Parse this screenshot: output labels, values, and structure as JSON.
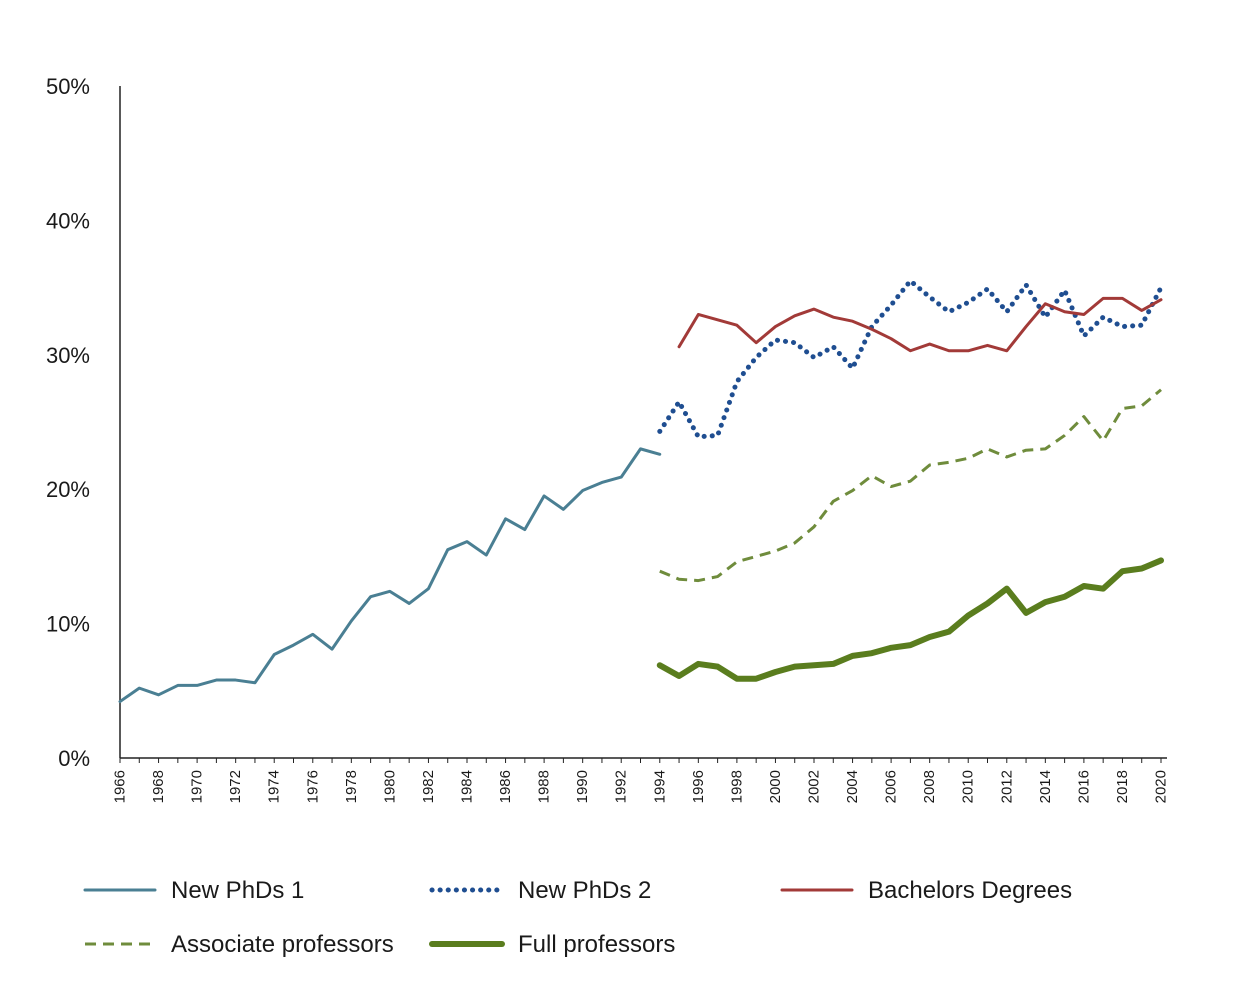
{
  "chart_data": {
    "type": "line",
    "title": "",
    "xlabel": "",
    "ylabel": "",
    "ylim": [
      0,
      50
    ],
    "xlim": [
      1966,
      2020
    ],
    "y_ticks": [
      0,
      10,
      20,
      30,
      40,
      50
    ],
    "y_tick_labels": [
      "0%",
      "10%",
      "20%",
      "30%",
      "40%",
      "50%"
    ],
    "x_tick_labels": [
      "1966",
      "1968",
      "1970",
      "1972",
      "1974",
      "1976",
      "1978",
      "1980",
      "1982",
      "1984",
      "1986",
      "1988",
      "1990",
      "1992",
      "1994",
      "1996",
      "1998",
      "2000",
      "2002",
      "2004",
      "2006",
      "2008",
      "2010",
      "2012",
      "2014",
      "2016",
      "2018",
      "2020"
    ],
    "grid": false,
    "legend_position": "bottom",
    "series": [
      {
        "name": "New PhDs 1",
        "color": "#4a7f93",
        "style": "solid",
        "points": [
          [
            1966,
            4.2
          ],
          [
            1967,
            5.2
          ],
          [
            1968,
            4.7
          ],
          [
            1969,
            5.4
          ],
          [
            1970,
            5.4
          ],
          [
            1971,
            5.8
          ],
          [
            1972,
            5.8
          ],
          [
            1973,
            5.6
          ],
          [
            1974,
            7.7
          ],
          [
            1975,
            8.4
          ],
          [
            1976,
            9.2
          ],
          [
            1977,
            8.1
          ],
          [
            1978,
            10.2
          ],
          [
            1979,
            12.0
          ],
          [
            1980,
            12.4
          ],
          [
            1981,
            11.5
          ],
          [
            1982,
            12.6
          ],
          [
            1983,
            15.5
          ],
          [
            1984,
            16.1
          ],
          [
            1985,
            15.1
          ],
          [
            1986,
            17.8
          ],
          [
            1987,
            17.0
          ],
          [
            1988,
            19.5
          ],
          [
            1989,
            18.5
          ],
          [
            1990,
            19.9
          ],
          [
            1991,
            20.5
          ],
          [
            1992,
            20.9
          ],
          [
            1993,
            23.0
          ],
          [
            1994,
            22.6
          ]
        ]
      },
      {
        "name": "New PhDs 2",
        "color": "#1f4e91",
        "style": "dotted",
        "points": [
          [
            1994,
            24.3
          ],
          [
            1995,
            26.5
          ],
          [
            1996,
            23.9
          ],
          [
            1997,
            24.0
          ],
          [
            1998,
            28.0
          ],
          [
            1999,
            29.8
          ],
          [
            2000,
            31.1
          ],
          [
            2001,
            30.9
          ],
          [
            2002,
            29.8
          ],
          [
            2003,
            30.6
          ],
          [
            2004,
            29.0
          ],
          [
            2005,
            32.1
          ],
          [
            2006,
            33.7
          ],
          [
            2007,
            35.5
          ],
          [
            2008,
            34.3
          ],
          [
            2009,
            33.2
          ],
          [
            2010,
            33.9
          ],
          [
            2011,
            34.9
          ],
          [
            2012,
            33.2
          ],
          [
            2013,
            35.2
          ],
          [
            2014,
            32.8
          ],
          [
            2015,
            34.8
          ],
          [
            2016,
            31.4
          ],
          [
            2017,
            32.8
          ],
          [
            2018,
            32.1
          ],
          [
            2019,
            32.2
          ],
          [
            2020,
            35.0
          ]
        ]
      },
      {
        "name": "Bachelors Degrees",
        "color": "#a23a38",
        "style": "solid",
        "points": [
          [
            1995,
            30.6
          ],
          [
            1996,
            33.0
          ],
          [
            1997,
            32.6
          ],
          [
            1998,
            32.2
          ],
          [
            1999,
            30.9
          ],
          [
            2000,
            32.1
          ],
          [
            2001,
            32.9
          ],
          [
            2002,
            33.4
          ],
          [
            2003,
            32.8
          ],
          [
            2004,
            32.5
          ],
          [
            2005,
            31.9
          ],
          [
            2006,
            31.2
          ],
          [
            2007,
            30.3
          ],
          [
            2008,
            30.8
          ],
          [
            2009,
            30.3
          ],
          [
            2010,
            30.3
          ],
          [
            2011,
            30.7
          ],
          [
            2012,
            30.3
          ],
          [
            2013,
            32.1
          ],
          [
            2014,
            33.8
          ],
          [
            2015,
            33.2
          ],
          [
            2016,
            33.0
          ],
          [
            2017,
            34.2
          ],
          [
            2018,
            34.2
          ],
          [
            2019,
            33.3
          ],
          [
            2020,
            34.1
          ]
        ]
      },
      {
        "name": "Associate professors",
        "color": "#6f8c3c",
        "style": "dashed",
        "points": [
          [
            1994,
            13.9
          ],
          [
            1995,
            13.3
          ],
          [
            1996,
            13.2
          ],
          [
            1997,
            13.5
          ],
          [
            1998,
            14.6
          ],
          [
            1999,
            15.0
          ],
          [
            2000,
            15.4
          ],
          [
            2001,
            16.0
          ],
          [
            2002,
            17.2
          ],
          [
            2003,
            19.1
          ],
          [
            2004,
            19.9
          ],
          [
            2005,
            21.0
          ],
          [
            2006,
            20.2
          ],
          [
            2007,
            20.6
          ],
          [
            2008,
            21.8
          ],
          [
            2009,
            22.0
          ],
          [
            2010,
            22.3
          ],
          [
            2011,
            23.0
          ],
          [
            2012,
            22.4
          ],
          [
            2013,
            22.9
          ],
          [
            2014,
            23.0
          ],
          [
            2015,
            24.0
          ],
          [
            2016,
            25.4
          ],
          [
            2017,
            23.6
          ],
          [
            2018,
            26.0
          ],
          [
            2019,
            26.2
          ],
          [
            2020,
            27.4
          ]
        ]
      },
      {
        "name": "Full professors",
        "color": "#5a7d1e",
        "style": "thick",
        "points": [
          [
            1994,
            6.9
          ],
          [
            1995,
            6.1
          ],
          [
            1996,
            7.0
          ],
          [
            1997,
            6.8
          ],
          [
            1998,
            5.9
          ],
          [
            1999,
            5.9
          ],
          [
            2000,
            6.4
          ],
          [
            2001,
            6.8
          ],
          [
            2002,
            6.9
          ],
          [
            2003,
            7.0
          ],
          [
            2004,
            7.6
          ],
          [
            2005,
            7.8
          ],
          [
            2006,
            8.2
          ],
          [
            2007,
            8.4
          ],
          [
            2008,
            9.0
          ],
          [
            2009,
            9.4
          ],
          [
            2010,
            10.6
          ],
          [
            2011,
            11.5
          ],
          [
            2012,
            12.6
          ],
          [
            2013,
            10.8
          ],
          [
            2014,
            11.6
          ],
          [
            2015,
            12.0
          ],
          [
            2016,
            12.8
          ],
          [
            2017,
            12.6
          ],
          [
            2018,
            13.9
          ],
          [
            2019,
            14.1
          ],
          [
            2020,
            14.7
          ]
        ]
      }
    ]
  }
}
